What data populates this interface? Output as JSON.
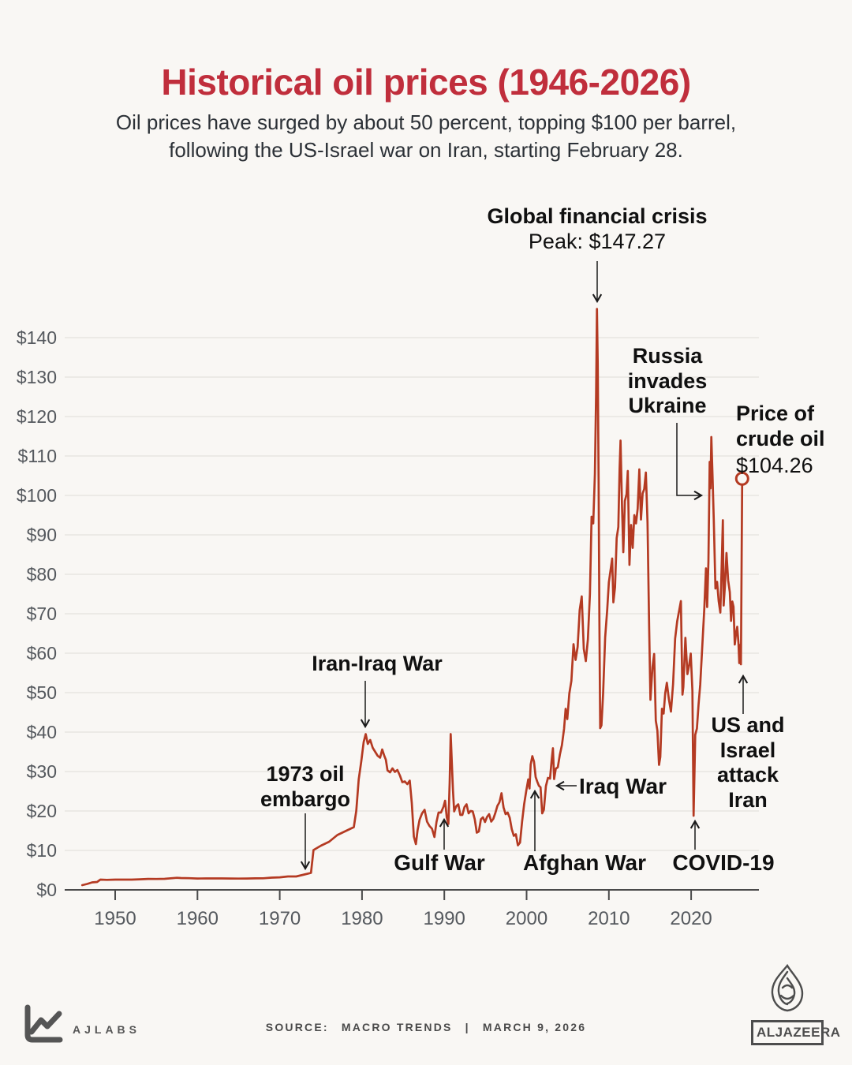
{
  "header": {
    "title": "Historical oil prices (1946-2026)",
    "subtitle_line1": "Oil prices have surged by about 50 percent, topping $100 per barrel,",
    "subtitle_line2": "following the US-Israel war on Iran, starting February 28."
  },
  "chart_data": {
    "type": "line",
    "title": "Historical oil prices (1946-2026)",
    "x_axis": {
      "ticks": [
        1950,
        1960,
        1970,
        1980,
        1990,
        2000,
        2010,
        2020
      ],
      "range": [
        1946,
        2026.2
      ]
    },
    "y_axis": {
      "tick_prefix": "$",
      "ticks": [
        0,
        10,
        20,
        30,
        40,
        50,
        60,
        70,
        80,
        90,
        100,
        110,
        120,
        130,
        140
      ],
      "range": [
        0,
        147.27
      ]
    },
    "grid": true,
    "series": [
      {
        "name": "Price of crude oil",
        "color": "#b43a22",
        "points": [
          [
            1946,
            1.2
          ],
          [
            1946.6,
            1.5
          ],
          [
            1947.2,
            1.9
          ],
          [
            1947.8,
            2.0
          ],
          [
            1948.2,
            2.6
          ],
          [
            1949,
            2.55
          ],
          [
            1950,
            2.6
          ],
          [
            1951,
            2.6
          ],
          [
            1952,
            2.6
          ],
          [
            1953,
            2.68
          ],
          [
            1954,
            2.78
          ],
          [
            1955,
            2.77
          ],
          [
            1956,
            2.79
          ],
          [
            1957.5,
            3.07
          ],
          [
            1958,
            3.01
          ],
          [
            1959,
            2.97
          ],
          [
            1960,
            2.88
          ],
          [
            1961,
            2.89
          ],
          [
            1962,
            2.9
          ],
          [
            1963,
            2.89
          ],
          [
            1964,
            2.88
          ],
          [
            1965,
            2.86
          ],
          [
            1966,
            2.88
          ],
          [
            1967,
            2.92
          ],
          [
            1968,
            2.94
          ],
          [
            1969,
            3.09
          ],
          [
            1970,
            3.18
          ],
          [
            1971,
            3.39
          ],
          [
            1972,
            3.39
          ],
          [
            1973,
            3.89
          ],
          [
            1973.8,
            4.3
          ],
          [
            1974.1,
            10.1
          ],
          [
            1975,
            11.2
          ],
          [
            1976,
            12.2
          ],
          [
            1977,
            13.9
          ],
          [
            1978,
            14.9
          ],
          [
            1979.0,
            15.9
          ],
          [
            1979.3,
            20
          ],
          [
            1979.6,
            28
          ],
          [
            1979.9,
            32.5
          ],
          [
            1980.2,
            37.5
          ],
          [
            1980.45,
            39.5
          ],
          [
            1980.7,
            37
          ],
          [
            1981,
            38
          ],
          [
            1981.3,
            36
          ],
          [
            1981.6,
            35
          ],
          [
            1981.9,
            34
          ],
          [
            1982.2,
            33.5
          ],
          [
            1982.45,
            35.6
          ],
          [
            1982.7,
            34
          ],
          [
            1982.9,
            33
          ],
          [
            1983.1,
            30.3
          ],
          [
            1983.4,
            29.8
          ],
          [
            1983.7,
            30.8
          ],
          [
            1984,
            29.9
          ],
          [
            1984.3,
            30.4
          ],
          [
            1984.6,
            29
          ],
          [
            1984.9,
            27.3
          ],
          [
            1985.2,
            27.5
          ],
          [
            1985.5,
            26.8
          ],
          [
            1985.8,
            27.7
          ],
          [
            1986.05,
            22
          ],
          [
            1986.3,
            13.5
          ],
          [
            1986.55,
            11.6
          ],
          [
            1986.75,
            15.1
          ],
          [
            1987,
            17.8
          ],
          [
            1987.3,
            19.4
          ],
          [
            1987.6,
            20.3
          ],
          [
            1987.9,
            17.3
          ],
          [
            1988.2,
            16.2
          ],
          [
            1988.5,
            15.5
          ],
          [
            1988.8,
            13.4
          ],
          [
            1989.05,
            17.2
          ],
          [
            1989.3,
            19.6
          ],
          [
            1989.6,
            19.6
          ],
          [
            1989.9,
            21.1
          ],
          [
            1990.1,
            22.6
          ],
          [
            1990.3,
            18.4
          ],
          [
            1990.5,
            16.7
          ],
          [
            1990.65,
            27.3
          ],
          [
            1990.78,
            39.5
          ],
          [
            1990.9,
            33
          ],
          [
            1991.05,
            25.2
          ],
          [
            1991.2,
            19.9
          ],
          [
            1991.45,
            21.2
          ],
          [
            1991.7,
            21.7
          ],
          [
            1991.95,
            19
          ],
          [
            1992.2,
            19
          ],
          [
            1992.45,
            21
          ],
          [
            1992.7,
            21.7
          ],
          [
            1992.95,
            19.4
          ],
          [
            1993.2,
            20
          ],
          [
            1993.45,
            19.9
          ],
          [
            1993.7,
            17.9
          ],
          [
            1993.95,
            14.5
          ],
          [
            1994.2,
            14.8
          ],
          [
            1994.45,
            17.9
          ],
          [
            1994.7,
            18.4
          ],
          [
            1994.95,
            17.2
          ],
          [
            1995.2,
            18.5
          ],
          [
            1995.45,
            19.2
          ],
          [
            1995.7,
            17.3
          ],
          [
            1995.95,
            18
          ],
          [
            1996.2,
            19.5
          ],
          [
            1996.45,
            21.3
          ],
          [
            1996.7,
            22.2
          ],
          [
            1996.95,
            24.5
          ],
          [
            1997.2,
            20.9
          ],
          [
            1997.45,
            19.2
          ],
          [
            1997.7,
            19.6
          ],
          [
            1997.95,
            18.3
          ],
          [
            1998.2,
            15.4
          ],
          [
            1998.45,
            13.7
          ],
          [
            1998.7,
            14.1
          ],
          [
            1998.95,
            11.3
          ],
          [
            1999.2,
            12
          ],
          [
            1999.45,
            17.3
          ],
          [
            1999.7,
            21.7
          ],
          [
            1999.95,
            25
          ],
          [
            2000.2,
            28
          ],
          [
            2000.35,
            25.7
          ],
          [
            2000.5,
            31.8
          ],
          [
            2000.7,
            33.9
          ],
          [
            2000.9,
            32.5
          ],
          [
            2001.1,
            28.6
          ],
          [
            2001.3,
            27.4
          ],
          [
            2001.5,
            26.4
          ],
          [
            2001.7,
            26
          ],
          [
            2001.9,
            19.4
          ],
          [
            2002.1,
            20.3
          ],
          [
            2002.35,
            26.3
          ],
          [
            2002.6,
            28.4
          ],
          [
            2002.85,
            28.2
          ],
          [
            2003.05,
            32.9
          ],
          [
            2003.2,
            35.9
          ],
          [
            2003.35,
            28.1
          ],
          [
            2003.55,
            30.7
          ],
          [
            2003.8,
            31.1
          ],
          [
            2004.05,
            34.3
          ],
          [
            2004.3,
            36.7
          ],
          [
            2004.55,
            40.8
          ],
          [
            2004.75,
            45.9
          ],
          [
            2004.95,
            43.3
          ],
          [
            2005.2,
            49.8
          ],
          [
            2005.45,
            53
          ],
          [
            2005.7,
            62.3
          ],
          [
            2005.95,
            58.3
          ],
          [
            2006.2,
            61.6
          ],
          [
            2006.45,
            70.9
          ],
          [
            2006.7,
            74.4
          ],
          [
            2006.95,
            61.1
          ],
          [
            2007.2,
            58
          ],
          [
            2007.45,
            63.5
          ],
          [
            2007.7,
            75
          ],
          [
            2007.9,
            94.6
          ],
          [
            2008.1,
            92.9
          ],
          [
            2008.3,
            105.5
          ],
          [
            2008.45,
            125.4
          ],
          [
            2008.55,
            147.27
          ],
          [
            2008.65,
            133.4
          ],
          [
            2008.75,
            104
          ],
          [
            2008.85,
            68.1
          ],
          [
            2008.95,
            41
          ],
          [
            2009.1,
            41.7
          ],
          [
            2009.3,
            49.7
          ],
          [
            2009.55,
            64
          ],
          [
            2009.8,
            71
          ],
          [
            2010,
            78
          ],
          [
            2010.2,
            81
          ],
          [
            2010.4,
            84
          ],
          [
            2010.55,
            72.9
          ],
          [
            2010.75,
            76.7
          ],
          [
            2010.95,
            89.2
          ],
          [
            2011.15,
            92
          ],
          [
            2011.3,
            106.7
          ],
          [
            2011.42,
            113.9
          ],
          [
            2011.6,
            97
          ],
          [
            2011.75,
            85.6
          ],
          [
            2011.95,
            98.6
          ],
          [
            2012.15,
            100.3
          ],
          [
            2012.3,
            106.2
          ],
          [
            2012.5,
            82.4
          ],
          [
            2012.7,
            92.5
          ],
          [
            2012.9,
            86.7
          ],
          [
            2013.1,
            95
          ],
          [
            2013.3,
            92.9
          ],
          [
            2013.5,
            96.6
          ],
          [
            2013.7,
            106.6
          ],
          [
            2013.9,
            93.9
          ],
          [
            2014.1,
            100.5
          ],
          [
            2014.3,
            101.6
          ],
          [
            2014.5,
            105.8
          ],
          [
            2014.7,
            93.2
          ],
          [
            2014.9,
            66.2
          ],
          [
            2015.05,
            48.2
          ],
          [
            2015.3,
            56.5
          ],
          [
            2015.5,
            59.8
          ],
          [
            2015.7,
            42.9
          ],
          [
            2015.9,
            40.4
          ],
          [
            2016.1,
            31.7
          ],
          [
            2016.25,
            33.7
          ],
          [
            2016.45,
            45.9
          ],
          [
            2016.65,
            44.7
          ],
          [
            2016.85,
            49.8
          ],
          [
            2017.05,
            52.5
          ],
          [
            2017.3,
            48.3
          ],
          [
            2017.55,
            45.2
          ],
          [
            2017.8,
            52.2
          ],
          [
            2018.05,
            63.7
          ],
          [
            2018.3,
            68.1
          ],
          [
            2018.55,
            70.9
          ],
          [
            2018.75,
            73.2
          ],
          [
            2018.95,
            49.5
          ],
          [
            2019.05,
            51.4
          ],
          [
            2019.3,
            63.9
          ],
          [
            2019.55,
            54.7
          ],
          [
            2019.75,
            56.9
          ],
          [
            2019.95,
            59.9
          ],
          [
            2020.15,
            50.5
          ],
          [
            2020.3,
            18.8
          ],
          [
            2020.5,
            39.3
          ],
          [
            2020.7,
            40.9
          ],
          [
            2020.9,
            47
          ],
          [
            2021.1,
            52
          ],
          [
            2021.35,
            61.7
          ],
          [
            2021.6,
            71.4
          ],
          [
            2021.8,
            81.5
          ],
          [
            2021.95,
            71.7
          ],
          [
            2022.1,
            83.2
          ],
          [
            2022.25,
            108.5
          ],
          [
            2022.35,
            101.8
          ],
          [
            2022.45,
            114.8
          ],
          [
            2022.6,
            105
          ],
          [
            2022.75,
            93.7
          ],
          [
            2022.95,
            76.4
          ],
          [
            2023.15,
            78.1
          ],
          [
            2023.35,
            73.2
          ],
          [
            2023.55,
            70.3
          ],
          [
            2023.7,
            81.4
          ],
          [
            2023.85,
            93.7
          ],
          [
            2023.95,
            72.1
          ],
          [
            2024.1,
            77
          ],
          [
            2024.3,
            85.4
          ],
          [
            2024.5,
            78.5
          ],
          [
            2024.7,
            75.5
          ],
          [
            2024.85,
            68.2
          ],
          [
            2025.0,
            73.1
          ],
          [
            2025.15,
            71.8
          ],
          [
            2025.3,
            62.2
          ],
          [
            2025.45,
            64.9
          ],
          [
            2025.6,
            66.7
          ],
          [
            2025.75,
            62.5
          ],
          [
            2025.85,
            57.5
          ],
          [
            2025.95,
            62.1
          ],
          [
            2026.05,
            57.2
          ],
          [
            2026.2,
            104.26
          ]
        ]
      }
    ],
    "end_marker": {
      "year": 2026.2,
      "price": 104.26,
      "label": "$104.26"
    }
  },
  "annotations": [
    {
      "id": "global-financial-crisis",
      "lines": [
        "Global financial crisis"
      ],
      "sub": "Peak: $147.27",
      "target_year": 2008.55,
      "target_price": 147.27
    },
    {
      "id": "russia-invades-ukraine",
      "lines": [
        "Russia",
        "invades",
        "Ukraine"
      ],
      "target_year": 2022.45,
      "target_price": 114.8
    },
    {
      "id": "price-of-crude-oil",
      "lines": [
        "Price of",
        "crude oil"
      ],
      "sub": "$104.26",
      "target_year": 2026.2,
      "target_price": 104.26
    },
    {
      "id": "iran-iraq-war",
      "lines": [
        "Iran-Iraq War"
      ],
      "target_year": 1980.45,
      "target_price": 39.5
    },
    {
      "id": "1973-oil-embargo",
      "lines": [
        "1973 oil",
        "embargo"
      ],
      "target_year": 1973.8,
      "target_price": 4.3
    },
    {
      "id": "gulf-war",
      "lines": [
        "Gulf War"
      ],
      "target_year": 1990.78,
      "target_price": 39.5
    },
    {
      "id": "afghan-war",
      "lines": [
        "Afghan War"
      ],
      "target_year": 2001.3,
      "target_price": 27.4
    },
    {
      "id": "iraq-war",
      "lines": [
        "Iraq War"
      ],
      "target_year": 2003.9,
      "target_price": 31
    },
    {
      "id": "covid-19",
      "lines": [
        "COVID-19"
      ],
      "target_year": 2020.3,
      "target_price": 18.8
    },
    {
      "id": "us-israel-attack-iran",
      "lines": [
        "US and",
        "Israel",
        "attack",
        "Iran"
      ],
      "target_year": 2025.85,
      "target_price": 57.5
    }
  ],
  "footer": {
    "ajlabs_label": "AJLABS",
    "source_label": "SOURCE:",
    "source_value": "MACRO TRENDS",
    "separator": "|",
    "date": "MARCH 9, 2026",
    "brand": "ALJAZEERA"
  },
  "colors": {
    "title": "#c02e3c",
    "line": "#b43a22",
    "background": "#f9f7f4",
    "grid": "#e8e5e1",
    "axis": "#4a4a4a"
  }
}
